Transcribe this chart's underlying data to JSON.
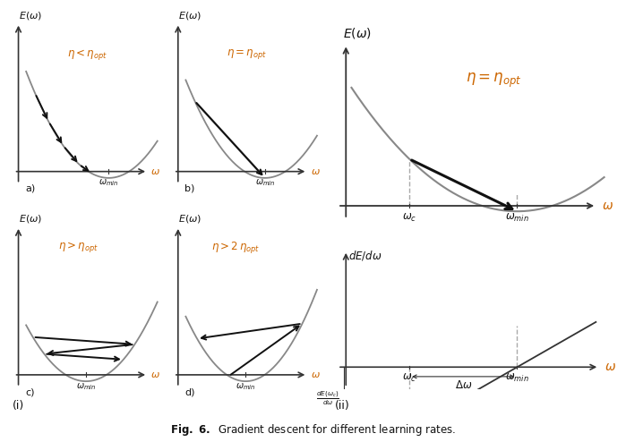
{
  "fig_width": 6.99,
  "fig_height": 4.94,
  "dpi": 100,
  "background": "white",
  "curve_color": "#888888",
  "arrow_color": "#111111",
  "text_color_orange": "#cc6600",
  "text_color_black": "#111111",
  "axis_color": "#333333",
  "dashed_color": "#aaaaaa",
  "panel_labels": [
    "a)",
    "b)",
    "c)",
    "d)"
  ],
  "eta_texts": [
    "$\\eta < \\eta_{opt}$",
    "$\\eta = \\eta_{opt}$",
    "$\\eta > \\eta_{opt}$",
    "$\\eta > 2\\,\\eta_{opt}$"
  ],
  "caption": "Fig. 6.  Gradient descent for different learning rates."
}
